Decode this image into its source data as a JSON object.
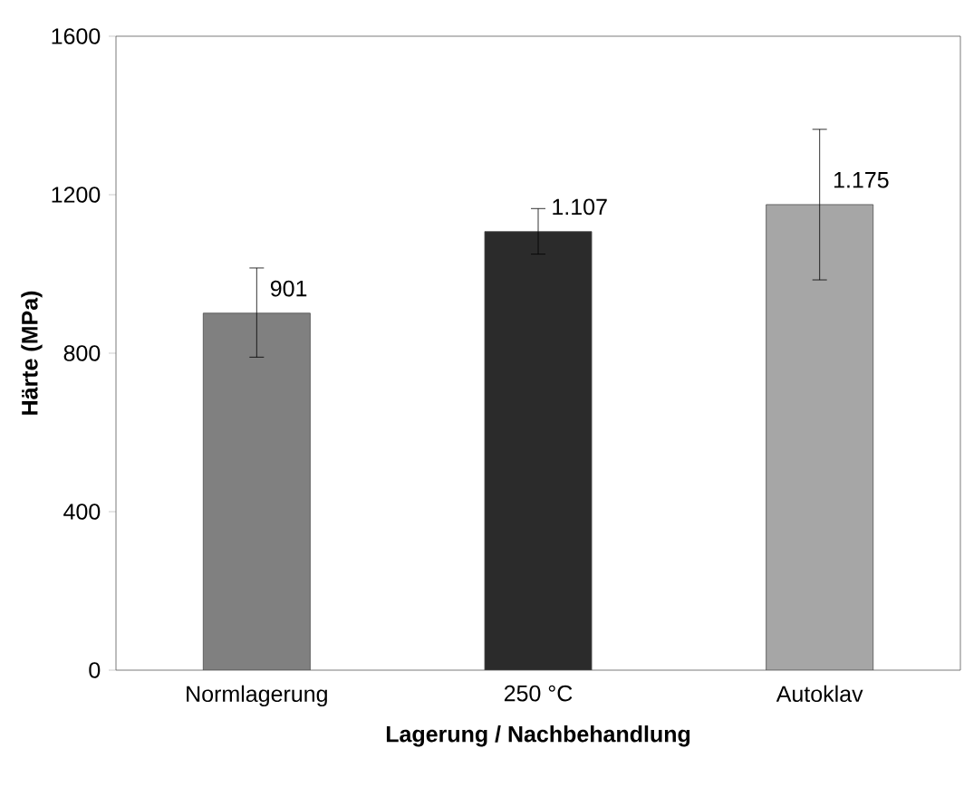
{
  "chart_data": {
    "type": "bar",
    "xlabel": "Lagerung / Nachbehandlung",
    "ylabel": "Härte (MPa)",
    "categories": [
      "Normlagerung",
      "250 °C",
      "Autoklav"
    ],
    "values": [
      901,
      1107,
      1175
    ],
    "colors": [
      "#808080",
      "#2b2b2b",
      "#a6a6a6"
    ],
    "errors": [
      [
        790,
        1015
      ],
      [
        1050,
        1165
      ],
      [
        985,
        1365
      ]
    ],
    "value_labels": [
      "901",
      "1.107",
      "1.175"
    ],
    "ylim": [
      0,
      1600
    ],
    "yticks": [
      0,
      400,
      800,
      1200,
      1600
    ],
    "grid": false
  }
}
